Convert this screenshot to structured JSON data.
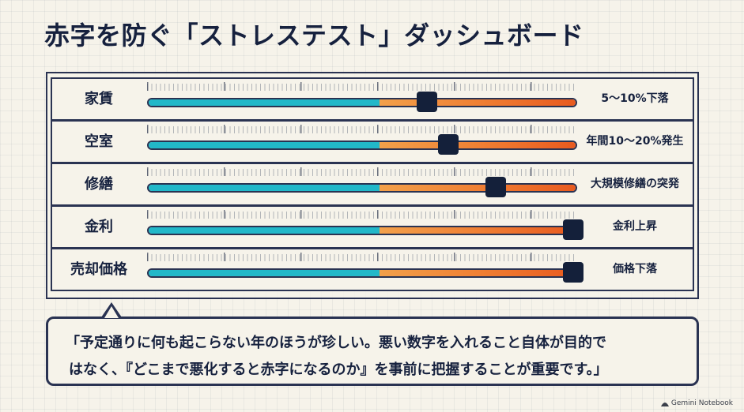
{
  "title": "赤字を防ぐ「ストレステスト」ダッシュボード",
  "rows": [
    {
      "label": "家賃",
      "value": "5〜10%下落",
      "level": 0.65
    },
    {
      "label": "空室",
      "value": "年間10〜20%発生",
      "level": 0.7
    },
    {
      "label": "修繕",
      "value": "大規模修繕の突発",
      "level": 0.81
    },
    {
      "label": "金利",
      "value": "金利上昇",
      "level": 0.99
    },
    {
      "label": "売却価格",
      "value": "価格下落",
      "level": 0.99
    }
  ],
  "gauge": {
    "safe_fraction": 0.54,
    "colors": {
      "safe": "#22b8c9",
      "risk_start": "#f2a04a",
      "risk_end": "#e85a1f",
      "knob": "#14203a"
    }
  },
  "callout": {
    "line1": "「予定通りに何も起こらない年のほうが珍しい。悪い数字を入れること自体が目的で",
    "line2": "はなく、『どこまで悪化すると赤字になるのか』を事前に把握することが重要です。」"
  },
  "watermark": {
    "icon": "gemini-notebook-icon",
    "text": "Gemini Notebook"
  }
}
